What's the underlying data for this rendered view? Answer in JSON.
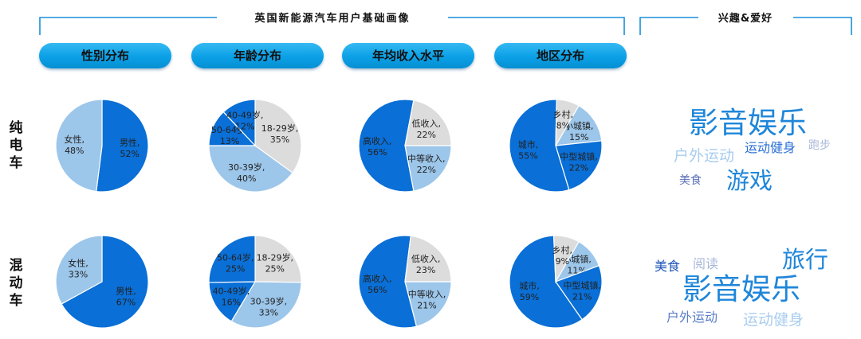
{
  "headers": {
    "main": "英国新能源汽车用户基础画像",
    "interest": "兴趣&爱好"
  },
  "categories": [
    "性别分布",
    "年龄分布",
    "年均收入水平",
    "地区分布"
  ],
  "row_labels": [
    "纯电车",
    "混动车"
  ],
  "colors": {
    "dark_blue": "#0a6fd6",
    "light_blue": "#9cc6ea",
    "light_gray": "#dcdcdc",
    "bracket": "#1a8fd8"
  },
  "chart_data": [
    {
      "type": "pie",
      "title": "性别分布",
      "row": "纯电车",
      "slices": [
        {
          "label": "男性",
          "value": 52,
          "color": "dark_blue"
        },
        {
          "label": "女性",
          "value": 48,
          "color": "light_blue"
        }
      ]
    },
    {
      "type": "pie",
      "title": "年龄分布",
      "row": "纯电车",
      "slices": [
        {
          "label": "18-29岁",
          "value": 35,
          "color": "light_gray"
        },
        {
          "label": "30-39岁",
          "value": 40,
          "color": "light_blue"
        },
        {
          "label": "50-64岁",
          "value": 13,
          "color": "dark_blue"
        },
        {
          "label": "40-49岁",
          "value": 12,
          "color": "dark_blue"
        }
      ]
    },
    {
      "type": "pie",
      "title": "年均收入水平",
      "row": "纯电车",
      "slices": [
        {
          "label": "中等收入",
          "value": 22,
          "color": "light_blue",
          "start": 90
        },
        {
          "label": "高收入",
          "value": 56,
          "color": "dark_blue"
        },
        {
          "label": "低收入",
          "value": 22,
          "color": "light_gray"
        }
      ]
    },
    {
      "type": "pie",
      "title": "地区分布",
      "row": "纯电车",
      "slices": [
        {
          "label": "小城镇",
          "value": 15,
          "color": "light_blue",
          "start": 30
        },
        {
          "label": "中型城镇",
          "value": 22,
          "color": "dark_blue"
        },
        {
          "label": "城市",
          "value": 55,
          "color": "dark_blue"
        },
        {
          "label": "乡村",
          "value": 8,
          "color": "light_gray"
        }
      ]
    },
    {
      "type": "pie",
      "title": "性别分布",
      "row": "混动车",
      "slices": [
        {
          "label": "男性",
          "value": 67,
          "color": "dark_blue"
        },
        {
          "label": "女性",
          "value": 33,
          "color": "light_blue"
        }
      ]
    },
    {
      "type": "pie",
      "title": "年龄分布",
      "row": "混动车",
      "slices": [
        {
          "label": "18-29岁",
          "value": 25,
          "color": "light_gray"
        },
        {
          "label": "30-39岁",
          "value": 33,
          "color": "light_blue"
        },
        {
          "label": "40-49岁",
          "value": 16,
          "color": "dark_blue"
        },
        {
          "label": "50-64岁",
          "value": 25,
          "color": "dark_blue"
        }
      ]
    },
    {
      "type": "pie",
      "title": "年均收入水平",
      "row": "混动车",
      "slices": [
        {
          "label": "中等收入",
          "value": 21,
          "color": "light_blue",
          "start": 90
        },
        {
          "label": "高收入",
          "value": 56,
          "color": "dark_blue"
        },
        {
          "label": "低收入",
          "value": 23,
          "color": "light_gray"
        }
      ]
    },
    {
      "type": "pie",
      "title": "地区分布",
      "row": "混动车",
      "slices": [
        {
          "label": "小城镇",
          "value": 11,
          "color": "light_blue",
          "start": 30
        },
        {
          "label": "中型城镇",
          "value": 21,
          "color": "dark_blue"
        },
        {
          "label": "城市",
          "value": 59,
          "color": "dark_blue"
        },
        {
          "label": "乡村",
          "value": 9,
          "color": "light_gray"
        }
      ]
    }
  ],
  "word_clouds": [
    {
      "row": "纯电车",
      "words": [
        {
          "text": "影音娱乐",
          "weight": 5,
          "color": "#1f86d9"
        },
        {
          "text": "户外运动",
          "weight": 3,
          "color": "#a8cdef"
        },
        {
          "text": "运动健身",
          "weight": 2,
          "color": "#2a6fd6"
        },
        {
          "text": "跑步",
          "weight": 1,
          "color": "#a8b8d8"
        },
        {
          "text": "美食",
          "weight": 1,
          "color": "#5b6fb8"
        },
        {
          "text": "游戏",
          "weight": 4,
          "color": "#1f86d9"
        }
      ]
    },
    {
      "row": "混动车",
      "words": [
        {
          "text": "旅行",
          "weight": 4,
          "color": "#1f86d9"
        },
        {
          "text": "美食",
          "weight": 2,
          "color": "#1f56b8"
        },
        {
          "text": "阅读",
          "weight": 2,
          "color": "#a8b8d8"
        },
        {
          "text": "影音娱乐",
          "weight": 5,
          "color": "#1f86d9"
        },
        {
          "text": "户外运动",
          "weight": 2,
          "color": "#5b7fc8"
        },
        {
          "text": "运动健身",
          "weight": 3,
          "color": "#a8cdef"
        }
      ]
    }
  ]
}
